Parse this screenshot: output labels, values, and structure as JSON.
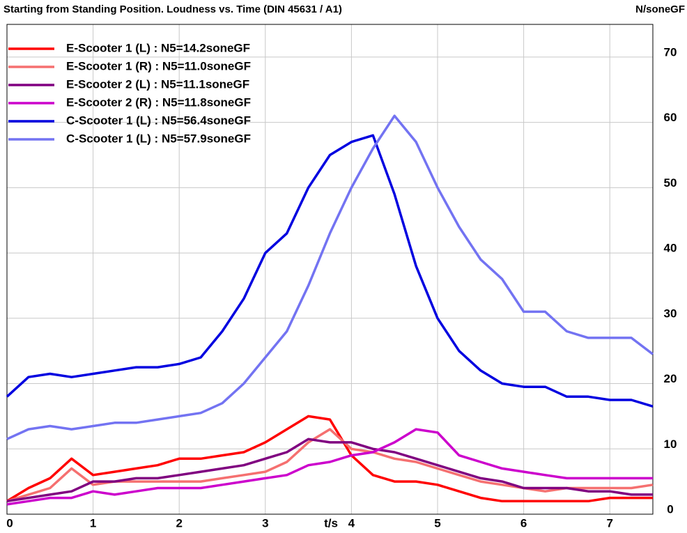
{
  "chart_data": {
    "type": "line",
    "title": "Starting from Standing Position. Loudness vs. Time (DIN 45631 / A1)",
    "y_axis_label": "N/soneGF",
    "x_axis_label": "t/s",
    "x": [
      0,
      0.25,
      0.5,
      0.75,
      1,
      1.25,
      1.5,
      1.75,
      2,
      2.25,
      2.5,
      2.75,
      3,
      3.25,
      3.5,
      3.75,
      4,
      4.25,
      4.5,
      4.75,
      5,
      5.25,
      5.5,
      5.75,
      6,
      6.25,
      6.5,
      6.75,
      7,
      7.25,
      7.5
    ],
    "series": [
      {
        "name": "E-Scooter 1 (L) : N5=14.2soneGF",
        "color": "#ff0000",
        "values": [
          2,
          4,
          5.5,
          8.5,
          6,
          6.5,
          7,
          7.5,
          8.5,
          8.5,
          9,
          9.5,
          11,
          13,
          15,
          14.5,
          9,
          6,
          5,
          5,
          4.5,
          3.5,
          2.5,
          2,
          2,
          2,
          2,
          2,
          2.5,
          2.5,
          2.5
        ]
      },
      {
        "name": "E-Scooter 1 (R) : N5=11.0soneGF",
        "color": "#f57070",
        "values": [
          2,
          3,
          4,
          7,
          4.5,
          5,
          5,
          5,
          5,
          5,
          5.5,
          6,
          6.5,
          8,
          11,
          13,
          10,
          9.5,
          8.5,
          8,
          7,
          6,
          5,
          4.5,
          4,
          3.5,
          4,
          4,
          4,
          4,
          4.5
        ]
      },
      {
        "name": "E-Scooter 2 (L) : N5=11.1soneGF",
        "color": "#800080",
        "values": [
          2,
          2.5,
          3,
          3.5,
          5,
          5,
          5.5,
          5.5,
          6,
          6.5,
          7,
          7.5,
          8.5,
          9.5,
          11.5,
          11,
          11,
          10,
          9.5,
          8.5,
          7.5,
          6.5,
          5.5,
          5,
          4,
          4,
          4,
          3.5,
          3.5,
          3,
          3
        ]
      },
      {
        "name": "E-Scooter 2 (R) : N5=11.8soneGF",
        "color": "#cc00cc",
        "values": [
          1.5,
          2,
          2.5,
          2.5,
          3.5,
          3,
          3.5,
          4,
          4,
          4,
          4.5,
          5,
          5.5,
          6,
          7.5,
          8,
          9,
          9.5,
          11,
          13,
          12.5,
          9,
          8,
          7,
          6.5,
          6,
          5.5,
          5.5,
          5.5,
          5.5,
          5.5
        ]
      },
      {
        "name": "C-Scooter 1 (L) : N5=56.4soneGF",
        "color": "#0000e0",
        "values": [
          18,
          21,
          21.5,
          21,
          21.5,
          22,
          22.5,
          22.5,
          23,
          24,
          28,
          33,
          40,
          43,
          50,
          55,
          57,
          58,
          49,
          38,
          30,
          25,
          22,
          20,
          19.5,
          19.5,
          18,
          18,
          17.5,
          17.5,
          16.5
        ]
      },
      {
        "name": "C-Scooter 1 (L) : N5=57.9soneGF",
        "color": "#7373f2",
        "values": [
          11.5,
          13,
          13.5,
          13,
          13.5,
          14,
          14,
          14.5,
          15,
          15.5,
          17,
          20,
          24,
          28,
          35,
          43,
          50,
          56,
          61,
          57,
          50,
          44,
          39,
          36,
          31,
          31,
          28,
          27,
          27,
          27,
          24.5
        ]
      }
    ],
    "xlim": [
      0,
      7.5
    ],
    "ylim": [
      0,
      75
    ],
    "xticks": [
      0,
      1,
      2,
      3,
      4,
      5,
      6,
      7
    ],
    "yticks": [
      0,
      10,
      20,
      30,
      40,
      50,
      60,
      70
    ],
    "grid": true,
    "legend": "top-left"
  }
}
